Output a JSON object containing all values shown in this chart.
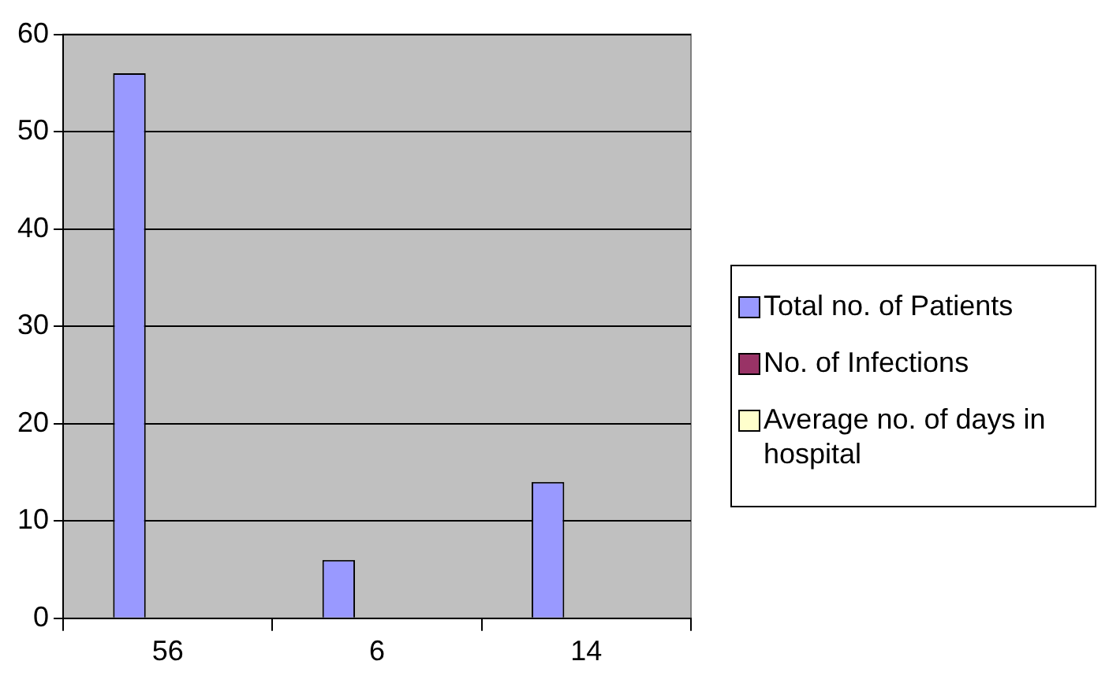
{
  "chart_data": {
    "type": "bar",
    "categories": [
      "56",
      "6",
      "14"
    ],
    "series": [
      {
        "name": "Total no. of Patients",
        "color": "#9999ff",
        "values": [
          56,
          6,
          14
        ]
      },
      {
        "name": "No. of Infections",
        "color": "#993366",
        "values": [
          null,
          null,
          null
        ]
      },
      {
        "name": "Average no. of days in hospital",
        "color": "#ffffcc",
        "values": [
          null,
          null,
          null
        ]
      }
    ],
    "ylim": [
      0,
      60
    ],
    "yticks": [
      0,
      10,
      20,
      30,
      40,
      50,
      60
    ],
    "grid": "y",
    "legend": "right"
  }
}
